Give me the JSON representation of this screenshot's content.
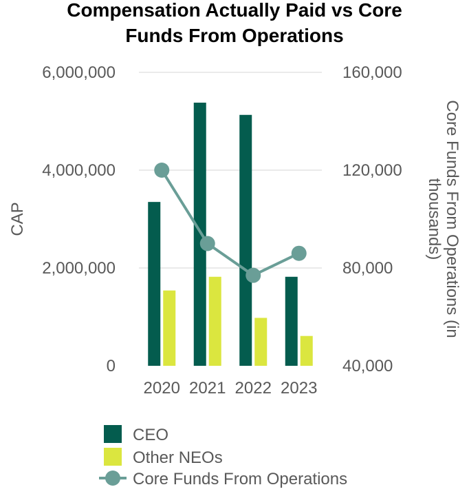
{
  "chart_data": {
    "type": "bar",
    "title_lines": [
      "Compensation Actually Paid vs Core",
      "Funds From Operations"
    ],
    "categories": [
      "2020",
      "2021",
      "2022",
      "2023"
    ],
    "ylabel": "CAP",
    "y2label_lines": [
      "Core Funds From Operations (in",
      "thousands)"
    ],
    "ylim": [
      0,
      6000000
    ],
    "y_ticks": [
      "0",
      "2,000,000",
      "4,000,000",
      "6,000,000"
    ],
    "y_tick_values": [
      0,
      2000000,
      4000000,
      6000000
    ],
    "y2lim": [
      40000,
      160000
    ],
    "y2_ticks": [
      "40,000",
      "80,000",
      "120,000",
      "160,000"
    ],
    "y2_tick_values": [
      40000,
      80000,
      120000,
      160000
    ],
    "grid": true,
    "legend_position": "bottom",
    "series": [
      {
        "name": "CEO",
        "type": "bar",
        "axis": "left",
        "color": "#045c4e",
        "values": [
          3350000,
          5380000,
          5130000,
          1820000
        ]
      },
      {
        "name": "Other NEOs",
        "type": "bar",
        "axis": "left",
        "color": "#dbe63f",
        "values": [
          1540000,
          1820000,
          980000,
          610000
        ]
      },
      {
        "name": "Core Funds From Operations",
        "type": "line",
        "axis": "right",
        "color": "#6a9e97",
        "values": [
          120000,
          90000,
          77000,
          86000
        ]
      }
    ]
  }
}
